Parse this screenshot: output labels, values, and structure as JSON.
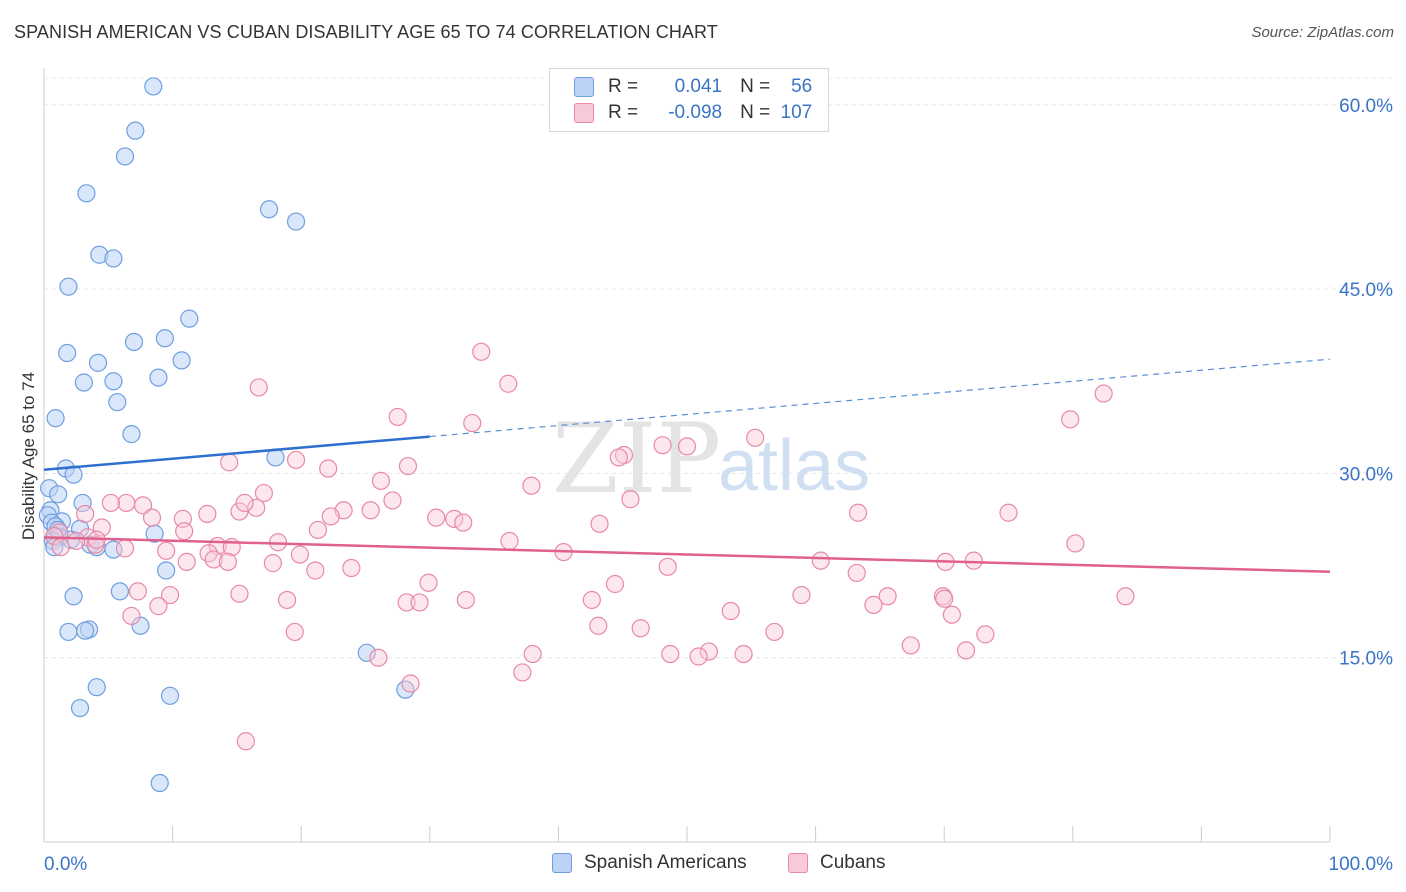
{
  "header": {
    "title": "SPANISH AMERICAN VS CUBAN DISABILITY AGE 65 TO 74 CORRELATION CHART",
    "source": "Source: ZipAtlas.com"
  },
  "watermark": {
    "zip": "ZIP",
    "atlas": "atlas"
  },
  "stats": [
    {
      "r_label": "R =",
      "r_value": "0.041",
      "n_label": "N =",
      "n_value": "56",
      "color": "#6f9fe0",
      "fill": "#bcd3f5"
    },
    {
      "r_label": "R =",
      "r_value": "-0.098",
      "n_label": "N =",
      "n_value": "107",
      "color": "#e889a8",
      "fill": "#f8c9d8"
    }
  ],
  "legend": [
    {
      "label": "Spanish Americans",
      "color": "#6f9fe0",
      "fill": "#bcd3f5"
    },
    {
      "label": "Cubans",
      "color": "#e889a8",
      "fill": "#f8c9d8"
    }
  ],
  "chart_data": {
    "type": "scatter",
    "title": "SPANISH AMERICAN VS CUBAN DISABILITY AGE 65 TO 74 CORRELATION CHART",
    "xlabel": "",
    "ylabel": "Disability Age 65 to 74",
    "xlim": [
      0,
      100
    ],
    "ylim": [
      0,
      63
    ],
    "x_tick_labels": [
      "0.0%",
      "100.0%"
    ],
    "y_ticks": [
      15,
      30,
      45,
      60
    ],
    "y_tick_labels": [
      "15.0%",
      "30.0%",
      "45.0%",
      "60.0%"
    ],
    "grid": true,
    "legend_position": "bottom",
    "series": [
      {
        "name": "Spanish Americans",
        "color": "#3a74c8",
        "points": [
          [
            8.5,
            61.5
          ],
          [
            7.1,
            57.9
          ],
          [
            6.3,
            55.8
          ],
          [
            3.3,
            52.8
          ],
          [
            17.5,
            51.5
          ],
          [
            19.6,
            50.5
          ],
          [
            4.3,
            47.8
          ],
          [
            5.4,
            47.5
          ],
          [
            1.9,
            45.2
          ],
          [
            11.3,
            42.6
          ],
          [
            7.0,
            40.7
          ],
          [
            9.4,
            41.0
          ],
          [
            1.8,
            39.8
          ],
          [
            10.7,
            39.2
          ],
          [
            4.2,
            39.0
          ],
          [
            3.1,
            37.4
          ],
          [
            5.4,
            37.5
          ],
          [
            8.9,
            37.8
          ],
          [
            5.7,
            35.8
          ],
          [
            0.9,
            34.5
          ],
          [
            6.8,
            33.2
          ],
          [
            18.0,
            31.3
          ],
          [
            1.7,
            30.4
          ],
          [
            2.3,
            29.9
          ],
          [
            0.4,
            28.8
          ],
          [
            1.1,
            28.3
          ],
          [
            3.0,
            27.6
          ],
          [
            0.5,
            27.0
          ],
          [
            0.3,
            26.6
          ],
          [
            1.4,
            26.1
          ],
          [
            0.6,
            26.0
          ],
          [
            0.9,
            25.7
          ],
          [
            1.1,
            25.4
          ],
          [
            2.8,
            25.5
          ],
          [
            0.8,
            24.9
          ],
          [
            1.2,
            24.8
          ],
          [
            2.1,
            24.6
          ],
          [
            0.7,
            24.5
          ],
          [
            3.6,
            24.2
          ],
          [
            0.8,
            24.0
          ],
          [
            4.1,
            24.0
          ],
          [
            8.6,
            25.1
          ],
          [
            5.4,
            23.8
          ],
          [
            9.5,
            22.1
          ],
          [
            5.9,
            20.4
          ],
          [
            2.3,
            20.0
          ],
          [
            3.5,
            17.3
          ],
          [
            1.9,
            17.1
          ],
          [
            3.2,
            17.2
          ],
          [
            7.5,
            17.6
          ],
          [
            25.1,
            15.4
          ],
          [
            4.1,
            12.6
          ],
          [
            28.1,
            12.4
          ],
          [
            9.8,
            11.9
          ],
          [
            2.8,
            10.9
          ],
          [
            9.0,
            4.8
          ]
        ],
        "trend": {
          "solid_from": [
            0,
            30.3
          ],
          "solid_to": [
            30,
            33.0
          ],
          "dashed_to": [
            100,
            39.3
          ]
        }
      },
      {
        "name": "Cubans",
        "color": "#e05a89",
        "points": [
          [
            34.0,
            39.9
          ],
          [
            36.1,
            37.3
          ],
          [
            16.7,
            37.0
          ],
          [
            82.4,
            36.5
          ],
          [
            79.8,
            34.4
          ],
          [
            27.5,
            34.6
          ],
          [
            33.3,
            34.1
          ],
          [
            55.3,
            32.9
          ],
          [
            48.1,
            32.3
          ],
          [
            50.0,
            32.2
          ],
          [
            45.1,
            31.5
          ],
          [
            44.7,
            31.3
          ],
          [
            14.4,
            30.9
          ],
          [
            19.6,
            31.1
          ],
          [
            28.3,
            30.6
          ],
          [
            22.1,
            30.4
          ],
          [
            26.2,
            29.4
          ],
          [
            37.9,
            29.0
          ],
          [
            17.1,
            28.4
          ],
          [
            45.6,
            27.9
          ],
          [
            27.1,
            27.8
          ],
          [
            6.4,
            27.6
          ],
          [
            7.7,
            27.4
          ],
          [
            23.3,
            27.0
          ],
          [
            25.4,
            27.0
          ],
          [
            15.2,
            26.9
          ],
          [
            16.5,
            27.2
          ],
          [
            75.0,
            26.8
          ],
          [
            63.3,
            26.8
          ],
          [
            12.7,
            26.7
          ],
          [
            3.2,
            26.7
          ],
          [
            8.4,
            26.4
          ],
          [
            22.3,
            26.5
          ],
          [
            10.8,
            26.3
          ],
          [
            30.5,
            26.4
          ],
          [
            31.9,
            26.3
          ],
          [
            32.6,
            26.0
          ],
          [
            43.2,
            25.9
          ],
          [
            4.5,
            25.6
          ],
          [
            21.3,
            25.4
          ],
          [
            10.9,
            25.3
          ],
          [
            1.2,
            25.2
          ],
          [
            0.8,
            24.9
          ],
          [
            3.4,
            24.8
          ],
          [
            36.2,
            24.5
          ],
          [
            2.5,
            24.5
          ],
          [
            18.2,
            24.4
          ],
          [
            4.0,
            24.2
          ],
          [
            13.5,
            24.1
          ],
          [
            1.3,
            24.0
          ],
          [
            14.6,
            24.0
          ],
          [
            6.3,
            23.9
          ],
          [
            80.2,
            24.3
          ],
          [
            9.5,
            23.7
          ],
          [
            40.4,
            23.6
          ],
          [
            12.8,
            23.5
          ],
          [
            19.9,
            23.4
          ],
          [
            13.2,
            23.0
          ],
          [
            70.1,
            22.8
          ],
          [
            72.3,
            22.9
          ],
          [
            11.1,
            22.8
          ],
          [
            60.4,
            22.9
          ],
          [
            14.3,
            22.8
          ],
          [
            17.8,
            22.7
          ],
          [
            23.9,
            22.3
          ],
          [
            48.5,
            22.4
          ],
          [
            21.1,
            22.1
          ],
          [
            63.2,
            21.9
          ],
          [
            29.9,
            21.1
          ],
          [
            44.4,
            21.0
          ],
          [
            7.3,
            20.4
          ],
          [
            15.2,
            20.2
          ],
          [
            9.8,
            20.1
          ],
          [
            58.9,
            20.1
          ],
          [
            84.1,
            20.0
          ],
          [
            65.6,
            20.0
          ],
          [
            69.9,
            20.0
          ],
          [
            70.0,
            19.8
          ],
          [
            42.6,
            19.7
          ],
          [
            18.9,
            19.7
          ],
          [
            32.8,
            19.7
          ],
          [
            28.2,
            19.5
          ],
          [
            29.2,
            19.5
          ],
          [
            64.5,
            19.3
          ],
          [
            8.9,
            19.2
          ],
          [
            53.4,
            18.8
          ],
          [
            70.6,
            18.5
          ],
          [
            6.8,
            18.4
          ],
          [
            43.1,
            17.6
          ],
          [
            46.4,
            17.4
          ],
          [
            19.5,
            17.1
          ],
          [
            56.8,
            17.1
          ],
          [
            73.2,
            16.9
          ],
          [
            71.7,
            15.6
          ],
          [
            67.4,
            16.0
          ],
          [
            51.7,
            15.5
          ],
          [
            48.7,
            15.3
          ],
          [
            38.0,
            15.3
          ],
          [
            26.0,
            15.0
          ],
          [
            54.4,
            15.3
          ],
          [
            50.9,
            15.1
          ],
          [
            37.2,
            13.8
          ],
          [
            28.5,
            12.9
          ],
          [
            15.7,
            8.2
          ],
          [
            5.2,
            27.6
          ],
          [
            15.6,
            27.6
          ],
          [
            4.1,
            24.6
          ]
        ],
        "trend": {
          "from": [
            0,
            24.8
          ],
          "to": [
            100,
            22.0
          ]
        }
      }
    ]
  }
}
